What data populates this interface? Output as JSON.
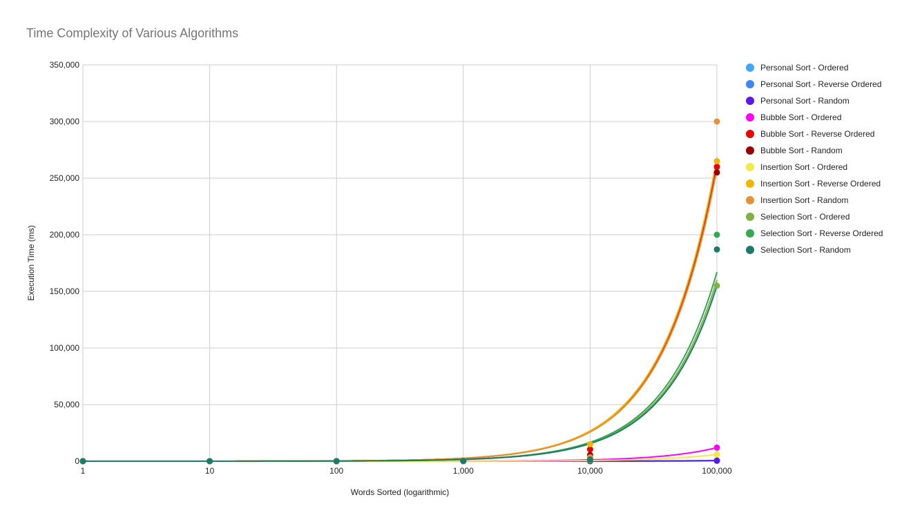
{
  "title": "Time Complexity of Various Algorithms",
  "chart_data": {
    "type": "scatter",
    "title": "Time Complexity of Various Algorithms",
    "xlabel": "Words Sorted (logarithmic)",
    "ylabel": "Execution Time (ms)",
    "x_scale": "log",
    "xlim": [
      1,
      100000
    ],
    "ylim": [
      0,
      350000
    ],
    "x_ticks": [
      "1",
      "10",
      "100",
      "1,000",
      "10,000",
      "100,000"
    ],
    "y_ticks": [
      "0",
      "50,000",
      "100,000",
      "150,000",
      "200,000",
      "250,000",
      "300,000",
      "350,000"
    ],
    "grid": true,
    "legend_position": "right",
    "trendlines": "linear",
    "x": [
      1,
      10,
      100,
      1000,
      10000,
      100000
    ],
    "series": [
      {
        "name": "Personal Sort - Ordered",
        "color": "#3fa9f5",
        "values": [
          0,
          0,
          0,
          2,
          20,
          300
        ],
        "trend_end": 300
      },
      {
        "name": "Personal Sort - Reverse Ordered",
        "color": "#4285f4",
        "values": [
          0,
          0,
          0,
          2,
          25,
          350
        ],
        "trend_end": 350
      },
      {
        "name": "Personal Sort - Random",
        "color": "#5e17eb",
        "values": [
          0,
          0,
          1,
          5,
          60,
          600
        ],
        "trend_end": 600
      },
      {
        "name": "Bubble Sort - Ordered",
        "color": "#ff00ff",
        "values": [
          0,
          0,
          10,
          150,
          1500,
          12000
        ],
        "trend_end": 12000
      },
      {
        "name": "Bubble Sort - Reverse Ordered",
        "color": "#ea0000",
        "values": [
          0,
          1,
          20,
          400,
          10500,
          260000
        ],
        "trend_end": 263000
      },
      {
        "name": "Bubble Sort - Random",
        "color": "#990000",
        "values": [
          0,
          1,
          15,
          300,
          5500,
          255000
        ],
        "trend_end": 259000
      },
      {
        "name": "Insertion Sort - Ordered",
        "color": "#f4e842",
        "values": [
          0,
          0,
          5,
          80,
          1200,
          6000
        ],
        "trend_end": 6000
      },
      {
        "name": "Insertion Sort - Reverse Ordered",
        "color": "#f4b400",
        "values": [
          0,
          1,
          30,
          500,
          15000,
          265000
        ],
        "trend_end": 268000
      },
      {
        "name": "Insertion Sort - Random",
        "color": "#e69138",
        "values": [
          0,
          1,
          20,
          300,
          3500,
          300000
        ],
        "trend_end": 258000
      },
      {
        "name": "Selection Sort - Ordered",
        "color": "#7cb342",
        "values": [
          0,
          1,
          10,
          150,
          800,
          155000
        ],
        "trend_end": 160000
      },
      {
        "name": "Selection Sort - Reverse Ordered",
        "color": "#34a853",
        "values": [
          0,
          1,
          10,
          160,
          1200,
          200000
        ],
        "trend_end": 167000
      },
      {
        "name": "Selection Sort - Random",
        "color": "#1e7b6a",
        "values": [
          0,
          1,
          10,
          160,
          1500,
          187000
        ],
        "trend_end": 155000
      }
    ]
  }
}
